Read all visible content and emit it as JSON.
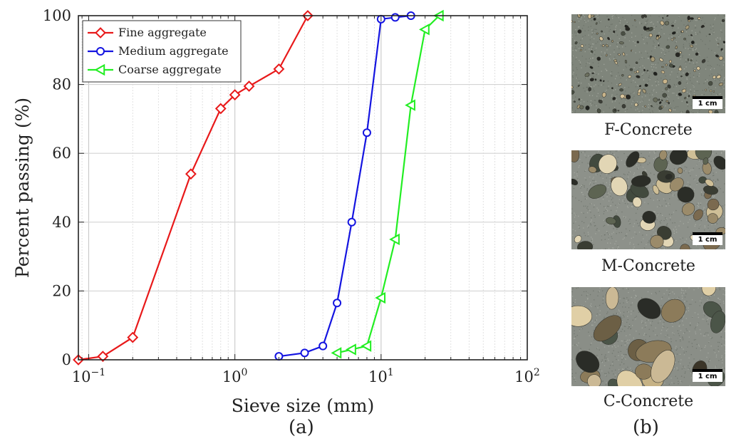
{
  "chart_data": {
    "type": "line",
    "xscale": "log",
    "xlim": [
      0.085,
      100
    ],
    "ylim": [
      0,
      100
    ],
    "xlabel": "Sieve size (mm)",
    "ylabel": "Percent passing (%)",
    "yticks": [
      "0",
      "20",
      "40",
      "60",
      "80",
      "100"
    ],
    "xticks": [
      {
        "base": "10",
        "exp": "−1"
      },
      {
        "base": "10",
        "exp": "0"
      },
      {
        "base": "10",
        "exp": "1"
      },
      {
        "base": "10",
        "exp": "2"
      }
    ],
    "grid": true,
    "legend_position": "top-left",
    "series": [
      {
        "name": "Fine aggregate",
        "color": "#e8191a",
        "marker": "diamond",
        "x": [
          0.085,
          0.125,
          0.2,
          0.5,
          0.8,
          1.0,
          1.25,
          2.0,
          3.15
        ],
        "y": [
          0,
          1,
          6.5,
          54,
          73,
          77,
          79.5,
          84.5,
          100
        ]
      },
      {
        "name": "Medium aggregate",
        "color": "#1414e0",
        "marker": "circle",
        "x": [
          2.0,
          3.0,
          4.0,
          5.0,
          6.3,
          8.0,
          10.0,
          12.5,
          16.0
        ],
        "y": [
          1,
          2,
          4,
          16.5,
          40,
          66,
          99,
          99.5,
          100
        ]
      },
      {
        "name": "Coarse aggregate",
        "color": "#22ee22",
        "marker": "triangle-left",
        "x": [
          5.0,
          6.3,
          8.0,
          10.0,
          12.5,
          16.0,
          20.0,
          25.0
        ],
        "y": [
          2,
          3,
          4,
          18,
          35,
          74,
          96,
          100
        ]
      }
    ]
  },
  "panel_labels": {
    "a": "(a)",
    "b": "(b)"
  },
  "photos": [
    {
      "caption": "F-Concrete",
      "scale": "1 cm"
    },
    {
      "caption": "M-Concrete",
      "scale": "1 cm"
    },
    {
      "caption": "C-Concrete",
      "scale": "1 cm"
    }
  ]
}
